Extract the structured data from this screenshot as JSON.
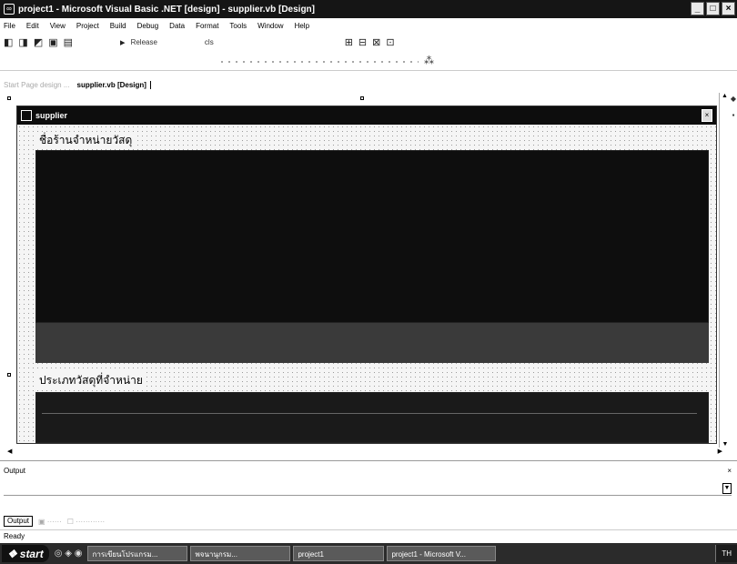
{
  "window": {
    "title": "project1 - Microsoft Visual Basic .NET [design] - supplier.vb [Design]",
    "buttons": {
      "minimize": "_",
      "maximize": "□",
      "close": "×"
    }
  },
  "menubar": {
    "items": [
      "File",
      "Edit",
      "View",
      "Project",
      "Build",
      "Debug",
      "Data",
      "Format",
      "Tools",
      "Window",
      "Help"
    ]
  },
  "toolbar": {
    "config_label": "Release",
    "search_label": "cls"
  },
  "document_tabs": {
    "faded_label": "Start Page  design  ...",
    "active_label": "supplier.vb [Design]"
  },
  "form": {
    "title": "supplier",
    "label_top": "ชื่อร้านจำหน่ายวัสดุ",
    "label_bottom": "ประเภทวัสดุที่จำหน่าย"
  },
  "output": {
    "title": "Output"
  },
  "bottom_tabs": [
    {
      "label": "Output"
    }
  ],
  "status": {
    "text": "Ready"
  },
  "taskbar": {
    "start_label": "start",
    "items": [
      "การเขียนโปรแกรม...",
      "พจนานุกรม...",
      "project1",
      "project1 - Microsoft V..."
    ],
    "tray_text": "TH"
  },
  "icons": {
    "app": "vbnet-app-icon",
    "form": "form-icon"
  }
}
